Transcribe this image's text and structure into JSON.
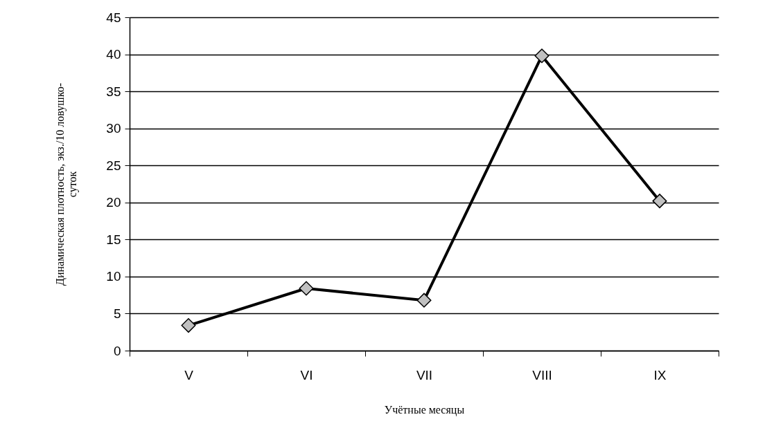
{
  "chart_data": {
    "type": "line",
    "xlabel": "Учётные месяцы",
    "ylabel": "Динамическая плотность, экз./10 ловушко-суток",
    "categories": [
      "V",
      "VI",
      "VII",
      "VIII",
      "IX"
    ],
    "series": [
      {
        "color": "#000000",
        "values": [
          3.4,
          8.4,
          6.8,
          39.8,
          20.2
        ]
      }
    ],
    "ylim": [
      0,
      45
    ],
    "yticks": [
      0,
      5,
      10,
      15,
      20,
      25,
      30,
      35,
      40,
      45
    ],
    "grid": "y",
    "marker": "diamond",
    "line_style": "solid",
    "legend": false
  }
}
